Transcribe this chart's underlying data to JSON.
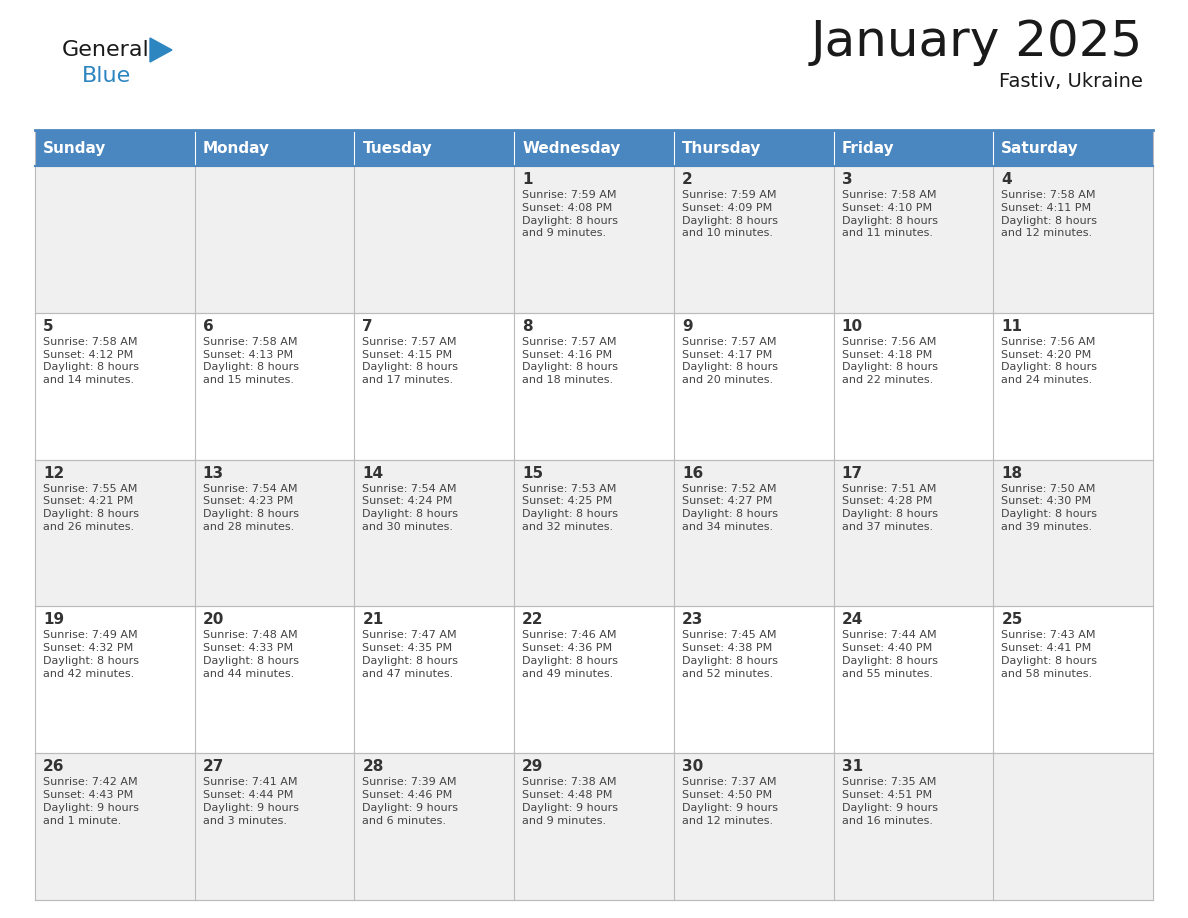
{
  "title": "January 2025",
  "subtitle": "Fastiv, Ukraine",
  "days_of_week": [
    "Sunday",
    "Monday",
    "Tuesday",
    "Wednesday",
    "Thursday",
    "Friday",
    "Saturday"
  ],
  "header_bg": "#4a86c0",
  "header_text": "#FFFFFF",
  "cell_bg_light": "#F0F0F0",
  "cell_bg_white": "#FFFFFF",
  "cell_border": "#BBBBBB",
  "day_num_color": "#333333",
  "text_color": "#444444",
  "title_color": "#1a1a1a",
  "logo_black": "#1a1a1a",
  "logo_blue": "#2E86C1",
  "calendar": [
    [
      {
        "day": null,
        "sunrise": null,
        "sunset": null,
        "daylight1": null,
        "daylight2": null
      },
      {
        "day": null,
        "sunrise": null,
        "sunset": null,
        "daylight1": null,
        "daylight2": null
      },
      {
        "day": null,
        "sunrise": null,
        "sunset": null,
        "daylight1": null,
        "daylight2": null
      },
      {
        "day": 1,
        "sunrise": "7:59 AM",
        "sunset": "4:08 PM",
        "daylight1": "8 hours",
        "daylight2": "and 9 minutes."
      },
      {
        "day": 2,
        "sunrise": "7:59 AM",
        "sunset": "4:09 PM",
        "daylight1": "8 hours",
        "daylight2": "and 10 minutes."
      },
      {
        "day": 3,
        "sunrise": "7:58 AM",
        "sunset": "4:10 PM",
        "daylight1": "8 hours",
        "daylight2": "and 11 minutes."
      },
      {
        "day": 4,
        "sunrise": "7:58 AM",
        "sunset": "4:11 PM",
        "daylight1": "8 hours",
        "daylight2": "and 12 minutes."
      }
    ],
    [
      {
        "day": 5,
        "sunrise": "7:58 AM",
        "sunset": "4:12 PM",
        "daylight1": "8 hours",
        "daylight2": "and 14 minutes."
      },
      {
        "day": 6,
        "sunrise": "7:58 AM",
        "sunset": "4:13 PM",
        "daylight1": "8 hours",
        "daylight2": "and 15 minutes."
      },
      {
        "day": 7,
        "sunrise": "7:57 AM",
        "sunset": "4:15 PM",
        "daylight1": "8 hours",
        "daylight2": "and 17 minutes."
      },
      {
        "day": 8,
        "sunrise": "7:57 AM",
        "sunset": "4:16 PM",
        "daylight1": "8 hours",
        "daylight2": "and 18 minutes."
      },
      {
        "day": 9,
        "sunrise": "7:57 AM",
        "sunset": "4:17 PM",
        "daylight1": "8 hours",
        "daylight2": "and 20 minutes."
      },
      {
        "day": 10,
        "sunrise": "7:56 AM",
        "sunset": "4:18 PM",
        "daylight1": "8 hours",
        "daylight2": "and 22 minutes."
      },
      {
        "day": 11,
        "sunrise": "7:56 AM",
        "sunset": "4:20 PM",
        "daylight1": "8 hours",
        "daylight2": "and 24 minutes."
      }
    ],
    [
      {
        "day": 12,
        "sunrise": "7:55 AM",
        "sunset": "4:21 PM",
        "daylight1": "8 hours",
        "daylight2": "and 26 minutes."
      },
      {
        "day": 13,
        "sunrise": "7:54 AM",
        "sunset": "4:23 PM",
        "daylight1": "8 hours",
        "daylight2": "and 28 minutes."
      },
      {
        "day": 14,
        "sunrise": "7:54 AM",
        "sunset": "4:24 PM",
        "daylight1": "8 hours",
        "daylight2": "and 30 minutes."
      },
      {
        "day": 15,
        "sunrise": "7:53 AM",
        "sunset": "4:25 PM",
        "daylight1": "8 hours",
        "daylight2": "and 32 minutes."
      },
      {
        "day": 16,
        "sunrise": "7:52 AM",
        "sunset": "4:27 PM",
        "daylight1": "8 hours",
        "daylight2": "and 34 minutes."
      },
      {
        "day": 17,
        "sunrise": "7:51 AM",
        "sunset": "4:28 PM",
        "daylight1": "8 hours",
        "daylight2": "and 37 minutes."
      },
      {
        "day": 18,
        "sunrise": "7:50 AM",
        "sunset": "4:30 PM",
        "daylight1": "8 hours",
        "daylight2": "and 39 minutes."
      }
    ],
    [
      {
        "day": 19,
        "sunrise": "7:49 AM",
        "sunset": "4:32 PM",
        "daylight1": "8 hours",
        "daylight2": "and 42 minutes."
      },
      {
        "day": 20,
        "sunrise": "7:48 AM",
        "sunset": "4:33 PM",
        "daylight1": "8 hours",
        "daylight2": "and 44 minutes."
      },
      {
        "day": 21,
        "sunrise": "7:47 AM",
        "sunset": "4:35 PM",
        "daylight1": "8 hours",
        "daylight2": "and 47 minutes."
      },
      {
        "day": 22,
        "sunrise": "7:46 AM",
        "sunset": "4:36 PM",
        "daylight1": "8 hours",
        "daylight2": "and 49 minutes."
      },
      {
        "day": 23,
        "sunrise": "7:45 AM",
        "sunset": "4:38 PM",
        "daylight1": "8 hours",
        "daylight2": "and 52 minutes."
      },
      {
        "day": 24,
        "sunrise": "7:44 AM",
        "sunset": "4:40 PM",
        "daylight1": "8 hours",
        "daylight2": "and 55 minutes."
      },
      {
        "day": 25,
        "sunrise": "7:43 AM",
        "sunset": "4:41 PM",
        "daylight1": "8 hours",
        "daylight2": "and 58 minutes."
      }
    ],
    [
      {
        "day": 26,
        "sunrise": "7:42 AM",
        "sunset": "4:43 PM",
        "daylight1": "9 hours",
        "daylight2": "and 1 minute."
      },
      {
        "day": 27,
        "sunrise": "7:41 AM",
        "sunset": "4:44 PM",
        "daylight1": "9 hours",
        "daylight2": "and 3 minutes."
      },
      {
        "day": 28,
        "sunrise": "7:39 AM",
        "sunset": "4:46 PM",
        "daylight1": "9 hours",
        "daylight2": "and 6 minutes."
      },
      {
        "day": 29,
        "sunrise": "7:38 AM",
        "sunset": "4:48 PM",
        "daylight1": "9 hours",
        "daylight2": "and 9 minutes."
      },
      {
        "day": 30,
        "sunrise": "7:37 AM",
        "sunset": "4:50 PM",
        "daylight1": "9 hours",
        "daylight2": "and 12 minutes."
      },
      {
        "day": 31,
        "sunrise": "7:35 AM",
        "sunset": "4:51 PM",
        "daylight1": "9 hours",
        "daylight2": "and 16 minutes."
      },
      {
        "day": null,
        "sunrise": null,
        "sunset": null,
        "daylight1": null,
        "daylight2": null
      }
    ]
  ]
}
